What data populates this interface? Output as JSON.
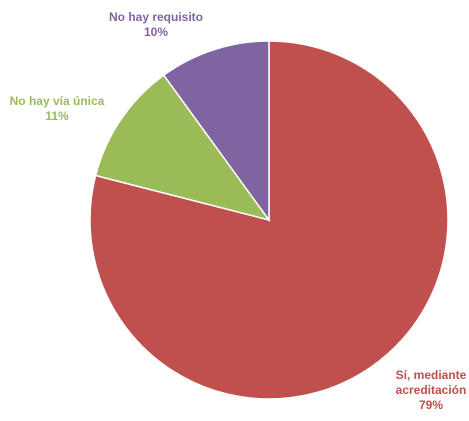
{
  "chart_data": {
    "type": "pie",
    "title": "",
    "slices": [
      {
        "label_lines": [
          "Sí, mediante",
          "acreditación"
        ],
        "percent_label": "79%",
        "value": 79,
        "color": "#C0504D"
      },
      {
        "label_lines": [
          "No hay vía única"
        ],
        "percent_label": "11%",
        "value": 11,
        "color": "#9BBB59"
      },
      {
        "label_lines": [
          "No hay requisito"
        ],
        "percent_label": "10%",
        "value": 10,
        "color": "#8064A2"
      }
    ],
    "start_angle_deg": 0,
    "direction": "clockwise",
    "legend": "none",
    "data_labels": "outside, colored by slice"
  }
}
